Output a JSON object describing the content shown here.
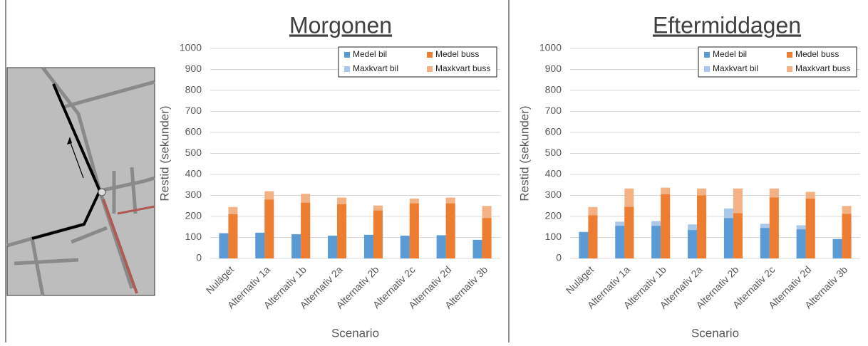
{
  "chart_data": [
    {
      "type": "bar",
      "title": "Morgonen",
      "x_label": "Scenario",
      "y_label": "Restid (sekunder)",
      "categories": [
        "Nuläget",
        "Alternativ 1a",
        "Alternativ 1b",
        "Alternativ 2a",
        "Alternativ 2b",
        "Alternativ 2c",
        "Alternativ 2d",
        "Alternativ 3b"
      ],
      "series": [
        {
          "name": "Medel bil",
          "color": "#5b9bd5",
          "values": [
            120,
            122,
            115,
            108,
            112,
            108,
            110,
            88
          ]
        },
        {
          "name": "Medel buss",
          "color": "#ed7d31",
          "values": [
            210,
            280,
            265,
            258,
            228,
            262,
            262,
            192
          ]
        },
        {
          "name": "Maxkvart bil",
          "color": "#a9c8ea",
          "values": [
            120,
            123,
            116,
            109,
            113,
            109,
            111,
            89
          ]
        },
        {
          "name": "Maxkvart buss",
          "color": "#f4b183",
          "values": [
            245,
            320,
            308,
            290,
            252,
            285,
            290,
            250
          ]
        }
      ],
      "ylim": [
        0,
        1000
      ],
      "yticks": [
        0,
        100,
        200,
        300,
        400,
        500,
        600,
        700,
        800,
        900,
        1000
      ],
      "grid": true,
      "legend": "top-right"
    },
    {
      "type": "bar",
      "title": "Eftermiddagen",
      "x_label": "Scenario",
      "y_label": "Restid (sekunder)",
      "categories": [
        "Nuläget",
        "Alternativ 1a",
        "Alternativ 1b",
        "Alternativ 2a",
        "Alternativ 2b",
        "Alternativ 2c",
        "Alternativ 2d",
        "Alternativ 3b"
      ],
      "series": [
        {
          "name": "Medel bil",
          "color": "#5b9bd5",
          "values": [
            125,
            155,
            155,
            135,
            192,
            145,
            138,
            92
          ]
        },
        {
          "name": "Medel buss",
          "color": "#ed7d31",
          "values": [
            205,
            245,
            305,
            300,
            215,
            290,
            285,
            212
          ]
        },
        {
          "name": "Maxkvart bil",
          "color": "#a9c8ea",
          "values": [
            127,
            175,
            178,
            162,
            238,
            165,
            158,
            93
          ]
        },
        {
          "name": "Maxkvart buss",
          "color": "#f4b183",
          "values": [
            245,
            333,
            337,
            333,
            333,
            333,
            317,
            250
          ]
        }
      ],
      "ylim": [
        0,
        1000
      ],
      "yticks": [
        0,
        100,
        200,
        300,
        400,
        500,
        600,
        700,
        800,
        900,
        1000
      ],
      "grid": true,
      "legend": "top-right"
    }
  ]
}
